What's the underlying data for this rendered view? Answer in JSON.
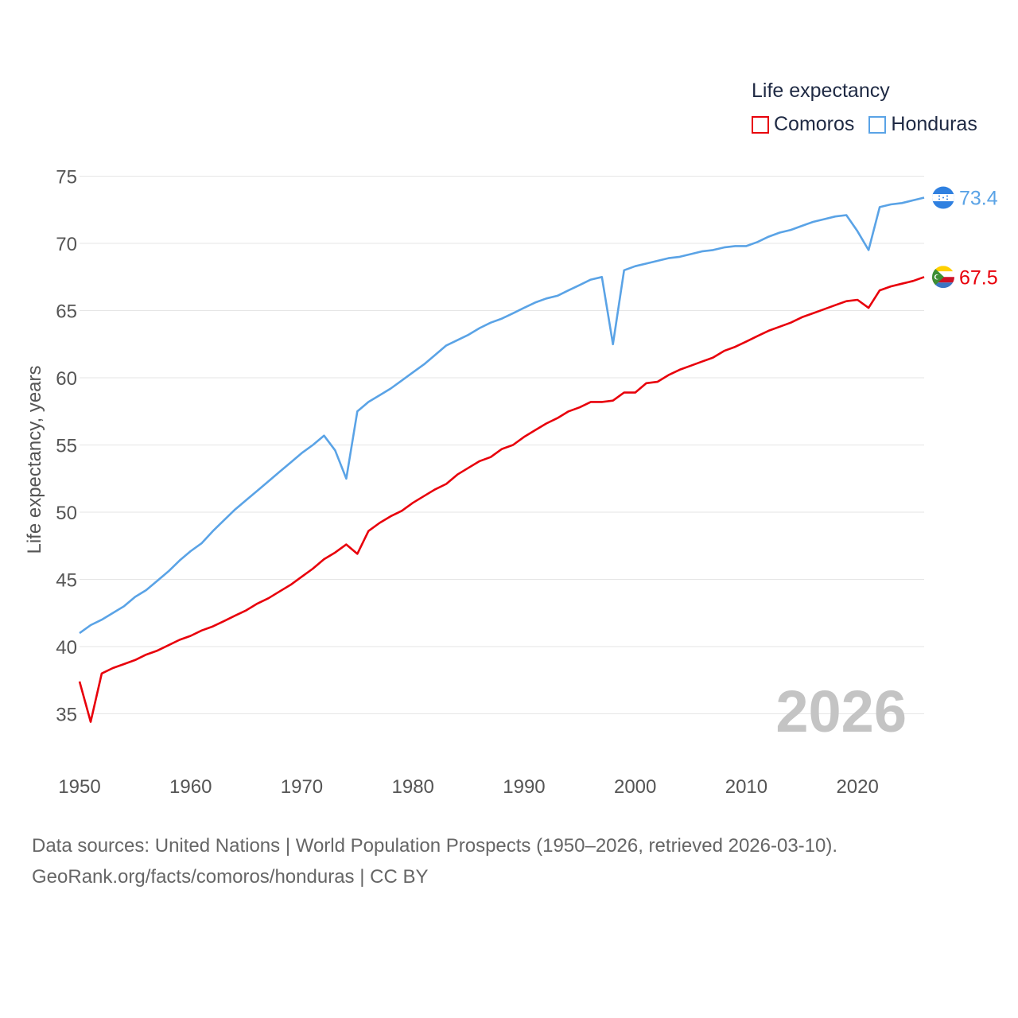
{
  "legend": {
    "title": "Life expectancy",
    "items": [
      {
        "label": "Comoros",
        "color": "#e8000b"
      },
      {
        "label": "Honduras",
        "color": "#5aa3e6"
      }
    ]
  },
  "footer": {
    "line1": "Data sources: United Nations | World Population Prospects (1950–2026, retrieved 2026-03-10).",
    "line2": "GeoRank.org/facts/comoros/honduras | CC BY"
  },
  "chart_data": {
    "type": "line",
    "title": "Life expectancy",
    "ylabel": "Life expectancy, years",
    "xlabel": "",
    "year_label": "2026",
    "xlim": [
      1950,
      2026
    ],
    "ylim": [
      32.5,
      75
    ],
    "xticks": [
      1950,
      1960,
      1970,
      1980,
      1990,
      2000,
      2010,
      2020
    ],
    "yticks": [
      35,
      40,
      45,
      50,
      55,
      60,
      65,
      70,
      75
    ],
    "grid": true,
    "legend_position": "top-right",
    "series": [
      {
        "name": "Comoros",
        "color": "#e8000b",
        "end_label": "67.5",
        "x": [
          1950,
          1951,
          1952,
          1953,
          1954,
          1955,
          1956,
          1957,
          1958,
          1959,
          1960,
          1961,
          1962,
          1963,
          1964,
          1965,
          1966,
          1967,
          1968,
          1969,
          1970,
          1971,
          1972,
          1973,
          1974,
          1975,
          1976,
          1977,
          1978,
          1979,
          1980,
          1981,
          1982,
          1983,
          1984,
          1985,
          1986,
          1987,
          1988,
          1989,
          1990,
          1991,
          1992,
          1993,
          1994,
          1995,
          1996,
          1997,
          1998,
          1999,
          2000,
          2001,
          2002,
          2003,
          2004,
          2005,
          2006,
          2007,
          2008,
          2009,
          2010,
          2011,
          2012,
          2013,
          2014,
          2015,
          2016,
          2017,
          2018,
          2019,
          2020,
          2021,
          2022,
          2023,
          2024,
          2025,
          2026
        ],
        "values": [
          37.4,
          34.4,
          38.0,
          38.4,
          38.7,
          39.0,
          39.4,
          39.7,
          40.1,
          40.5,
          40.8,
          41.2,
          41.5,
          41.9,
          42.3,
          42.7,
          43.2,
          43.6,
          44.1,
          44.6,
          45.2,
          45.8,
          46.5,
          47.0,
          47.6,
          46.9,
          48.6,
          49.2,
          49.7,
          50.1,
          50.7,
          51.2,
          51.7,
          52.1,
          52.8,
          53.3,
          53.8,
          54.1,
          54.7,
          55.0,
          55.6,
          56.1,
          56.6,
          57.0,
          57.5,
          57.8,
          58.2,
          58.2,
          58.3,
          58.9,
          58.9,
          59.6,
          59.7,
          60.2,
          60.6,
          60.9,
          61.2,
          61.5,
          62.0,
          62.3,
          62.7,
          63.1,
          63.5,
          63.8,
          64.1,
          64.5,
          64.8,
          65.1,
          65.4,
          65.7,
          65.8,
          65.2,
          66.5,
          66.8,
          67.0,
          67.2,
          67.5
        ]
      },
      {
        "name": "Honduras",
        "color": "#5aa3e6",
        "end_label": "73.4",
        "x": [
          1950,
          1951,
          1952,
          1953,
          1954,
          1955,
          1956,
          1957,
          1958,
          1959,
          1960,
          1961,
          1962,
          1963,
          1964,
          1965,
          1966,
          1967,
          1968,
          1969,
          1970,
          1971,
          1972,
          1973,
          1974,
          1975,
          1976,
          1977,
          1978,
          1979,
          1980,
          1981,
          1982,
          1983,
          1984,
          1985,
          1986,
          1987,
          1988,
          1989,
          1990,
          1991,
          1992,
          1993,
          1994,
          1995,
          1996,
          1997,
          1998,
          1999,
          2000,
          2001,
          2002,
          2003,
          2004,
          2005,
          2006,
          2007,
          2008,
          2009,
          2010,
          2011,
          2012,
          2013,
          2014,
          2015,
          2016,
          2017,
          2018,
          2019,
          2020,
          2021,
          2022,
          2023,
          2024,
          2025,
          2026
        ],
        "values": [
          41.0,
          41.6,
          42.0,
          42.5,
          43.0,
          43.7,
          44.2,
          44.9,
          45.6,
          46.4,
          47.1,
          47.7,
          48.6,
          49.4,
          50.2,
          50.9,
          51.6,
          52.3,
          53.0,
          53.7,
          54.4,
          55.0,
          55.7,
          54.6,
          52.5,
          57.5,
          58.2,
          58.7,
          59.2,
          59.8,
          60.4,
          61.0,
          61.7,
          62.4,
          62.8,
          63.2,
          63.7,
          64.1,
          64.4,
          64.8,
          65.2,
          65.6,
          65.9,
          66.1,
          66.5,
          66.9,
          67.3,
          67.5,
          62.5,
          68.0,
          68.3,
          68.5,
          68.7,
          68.9,
          69.0,
          69.2,
          69.4,
          69.5,
          69.7,
          69.8,
          69.8,
          70.1,
          70.5,
          70.8,
          71.0,
          71.3,
          71.6,
          71.8,
          72.0,
          72.1,
          70.9,
          69.5,
          72.7,
          72.9,
          73.0,
          73.2,
          73.4
        ]
      }
    ]
  }
}
